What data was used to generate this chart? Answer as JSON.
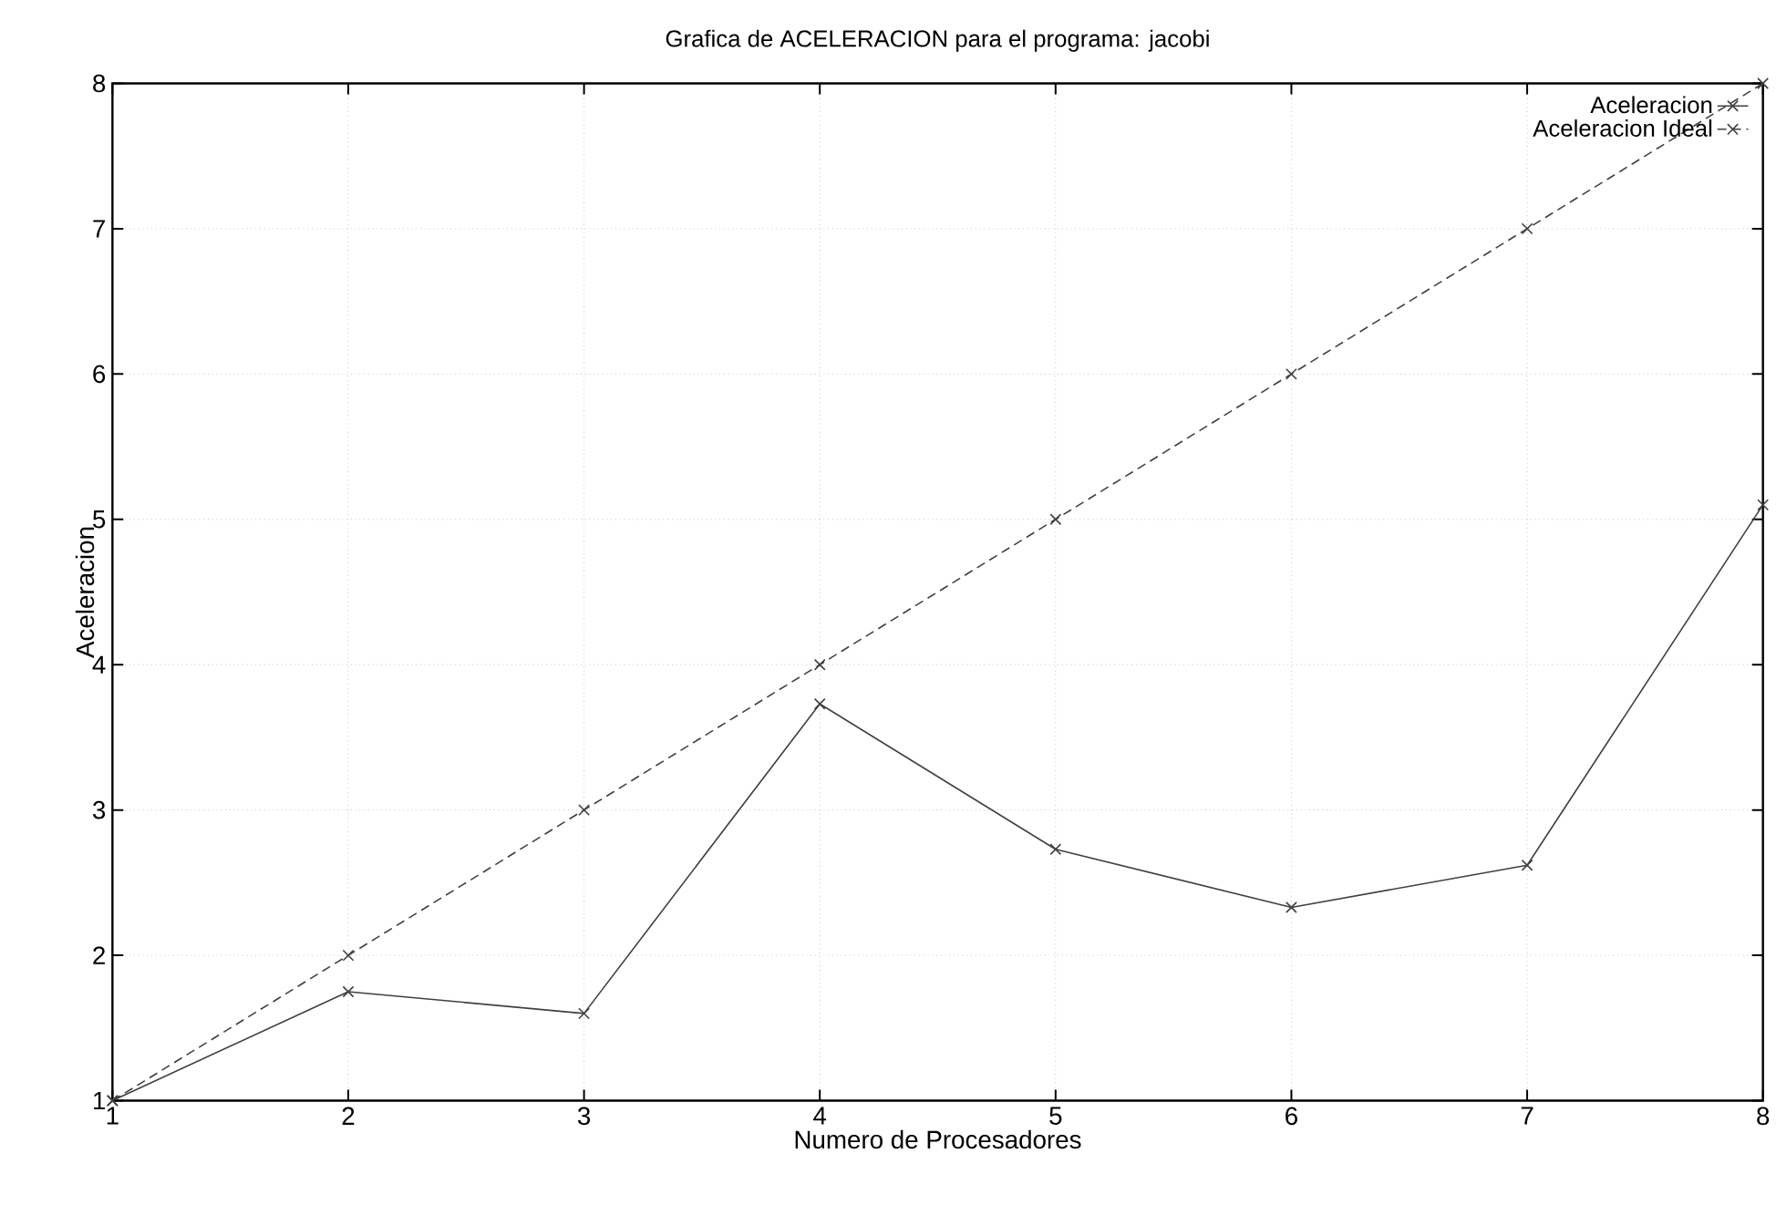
{
  "chart_data": {
    "type": "line",
    "title": "Grafica de ACELERACION para el programa: jacobi",
    "xlabel": "Numero de Procesadores",
    "ylabel": "Aceleracion",
    "x": [
      1,
      2,
      3,
      4,
      5,
      6,
      7,
      8
    ],
    "series": [
      {
        "name": "Aceleracion",
        "color": "#404040",
        "values": [
          1,
          1.75,
          1.6,
          3.73,
          2.73,
          2.33,
          2.62,
          5.1
        ],
        "line_style": "solid",
        "marker": "cross"
      },
      {
        "name": "Aceleracion Ideal",
        "color": "#404040",
        "values": [
          1,
          2,
          3,
          4,
          5,
          6,
          7,
          8
        ],
        "line_style": "dashed",
        "marker": "cross"
      }
    ],
    "xlim": [
      1,
      8
    ],
    "ylim": [
      1,
      8
    ],
    "xticks": [
      1,
      2,
      3,
      4,
      5,
      6,
      7,
      8
    ],
    "yticks": [
      1,
      2,
      3,
      4,
      5,
      6,
      7,
      8
    ],
    "grid": true,
    "legend": "top right"
  }
}
